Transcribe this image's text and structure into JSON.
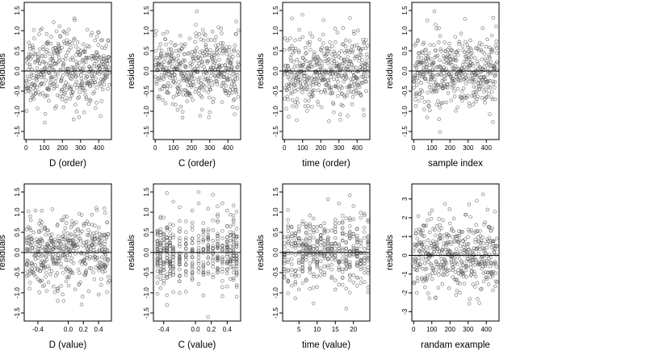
{
  "chart_data": [
    {
      "type": "scatter",
      "title": "",
      "xlabel": "D (order)",
      "ylabel": "residuals",
      "xlim": [
        -10,
        470
      ],
      "ylim": [
        -1.7,
        1.7
      ],
      "xticks": [
        0,
        100,
        200,
        300,
        400
      ],
      "xtick_labels": [
        "0",
        "100",
        "200",
        "300",
        "400"
      ],
      "yticks": [
        -1.5,
        -1.0,
        -0.5,
        0.0,
        0.5,
        1.0,
        1.5
      ],
      "ytick_labels": [
        "-1.5",
        "-1.0",
        "-0.5",
        "0.0",
        "0.5",
        "1.0",
        "1.5"
      ],
      "hline": 0,
      "grid": false,
      "gen": {
        "kind": "index",
        "n": 460,
        "seed": 11,
        "sd": 0.45
      }
    },
    {
      "type": "scatter",
      "title": "",
      "xlabel": "C (order)",
      "ylabel": "residuals",
      "xlim": [
        -10,
        470
      ],
      "ylim": [
        -1.7,
        1.7
      ],
      "xticks": [
        0,
        100,
        200,
        300,
        400
      ],
      "xtick_labels": [
        "0",
        "100",
        "200",
        "300",
        "400"
      ],
      "yticks": [
        -1.5,
        -1.0,
        -0.5,
        0.0,
        0.5,
        1.0,
        1.5
      ],
      "ytick_labels": [
        "-1.5",
        "-1.0",
        "-0.5",
        "0.0",
        "0.5",
        "1.0",
        "1.5"
      ],
      "hline": 0,
      "grid": false,
      "gen": {
        "kind": "index",
        "n": 460,
        "seed": 23,
        "sd": 0.45
      }
    },
    {
      "type": "scatter",
      "title": "",
      "xlabel": "time (order)",
      "ylabel": "residuals",
      "xlim": [
        -10,
        470
      ],
      "ylim": [
        -1.7,
        1.7
      ],
      "xticks": [
        0,
        100,
        200,
        300,
        400
      ],
      "xtick_labels": [
        "0",
        "100",
        "200",
        "300",
        "400"
      ],
      "yticks": [
        -1.5,
        -1.0,
        -0.5,
        0.0,
        0.5,
        1.0,
        1.5
      ],
      "ytick_labels": [
        "-1.5",
        "-1.0",
        "-0.5",
        "0.0",
        "0.5",
        "1.0",
        "1.5"
      ],
      "hline": 0,
      "grid": false,
      "gen": {
        "kind": "index",
        "n": 460,
        "seed": 37,
        "sd": 0.45
      }
    },
    {
      "type": "scatter",
      "title": "",
      "xlabel": "sample index",
      "ylabel": "residuals",
      "xlim": [
        -10,
        470
      ],
      "ylim": [
        -1.7,
        1.7
      ],
      "xticks": [
        0,
        100,
        200,
        300,
        400
      ],
      "xtick_labels": [
        "0",
        "100",
        "200",
        "300",
        "400"
      ],
      "yticks": [
        -1.5,
        -1.0,
        -0.5,
        0.0,
        0.5,
        1.0,
        1.5
      ],
      "ytick_labels": [
        "-1.5",
        "-1.0",
        "-0.5",
        "0.0",
        "0.5",
        "1.0",
        "1.5"
      ],
      "hline": 0,
      "grid": false,
      "gen": {
        "kind": "index",
        "n": 460,
        "seed": 41,
        "sd": 0.45
      }
    },
    {
      "type": "scatter",
      "title": "",
      "xlabel": "D (value)",
      "ylabel": "residuals",
      "xlim": [
        -0.58,
        0.57
      ],
      "ylim": [
        -1.7,
        1.7
      ],
      "xticks": [
        -0.4,
        0.0,
        0.2,
        0.4
      ],
      "xtick_labels": [
        "-0.4",
        "0.0",
        "0.2",
        "0.4"
      ],
      "yticks": [
        -1.5,
        -1.0,
        -0.5,
        0.0,
        0.5,
        1.0,
        1.5
      ],
      "ytick_labels": [
        "-1.5",
        "-1.0",
        "-0.5",
        "0.0",
        "0.5",
        "1.0",
        "1.5"
      ],
      "hline": 0,
      "grid": false,
      "gen": {
        "kind": "range",
        "n": 460,
        "seed": 53,
        "sd": 0.45,
        "lo": -0.55,
        "hi": 0.55
      }
    },
    {
      "type": "scatter",
      "title": "",
      "xlabel": "C (value)",
      "ylabel": "residuals",
      "xlim": [
        -0.53,
        0.57
      ],
      "ylim": [
        -1.7,
        1.7
      ],
      "xticks": [
        -0.4,
        0.0,
        0.2,
        0.4
      ],
      "xtick_labels": [
        "-0.4",
        "0.0",
        "0.2",
        "0.4"
      ],
      "yticks": [
        -1.5,
        -1.0,
        -0.5,
        0.0,
        0.5,
        1.0,
        1.5
      ],
      "ytick_labels": [
        "-1.5",
        "-1.0",
        "-0.5",
        "0.0",
        "0.5",
        "1.0",
        "1.5"
      ],
      "hline": 0,
      "grid": false,
      "gen": {
        "kind": "levels",
        "n": 460,
        "seed": 67,
        "sd": 0.45,
        "levels": [
          -0.48,
          -0.44,
          -0.4,
          -0.36,
          -0.32,
          -0.28,
          -0.2,
          -0.12,
          -0.04,
          0.04,
          0.1,
          0.16,
          0.22,
          0.28,
          0.34,
          0.4,
          0.44,
          0.48,
          0.52
        ]
      }
    },
    {
      "type": "scatter",
      "title": "",
      "xlabel": "time (value)",
      "ylabel": "residuals",
      "xlim": [
        0.5,
        24.5
      ],
      "ylim": [
        -1.7,
        1.7
      ],
      "xticks": [
        5,
        10,
        15,
        20
      ],
      "xtick_labels": [
        "5",
        "10",
        "15",
        "20"
      ],
      "yticks": [
        -1.5,
        -1.0,
        -0.5,
        0.0,
        0.5,
        1.0,
        1.5
      ],
      "ytick_labels": [
        "-1.5",
        "-1.0",
        "-0.5",
        "0.0",
        "0.5",
        "1.0",
        "1.5"
      ],
      "hline": 0,
      "grid": false,
      "gen": {
        "kind": "levels",
        "n": 460,
        "seed": 79,
        "sd": 0.45,
        "levels": [
          1,
          2,
          3,
          4,
          5,
          6,
          7,
          8,
          9,
          10,
          11,
          12,
          13,
          14,
          15,
          16,
          17,
          18,
          19,
          20,
          21,
          22,
          23,
          24
        ]
      }
    },
    {
      "type": "scatter",
      "title": "",
      "xlabel": "randam example",
      "ylabel": "residuals",
      "xlim": [
        -10,
        470
      ],
      "ylim": [
        -3.5,
        3.8
      ],
      "xticks": [
        0,
        100,
        200,
        300,
        400
      ],
      "xtick_labels": [
        "0",
        "100",
        "200",
        "300",
        "400"
      ],
      "yticks": [
        -3,
        -2,
        -1,
        0,
        1,
        2,
        3
      ],
      "ytick_labels": [
        "-3",
        "-2",
        "-1",
        "0",
        "1",
        "2",
        "3"
      ],
      "hline": 0,
      "grid": false,
      "gen": {
        "kind": "index",
        "n": 460,
        "seed": 97,
        "sd": 1.0
      }
    }
  ]
}
